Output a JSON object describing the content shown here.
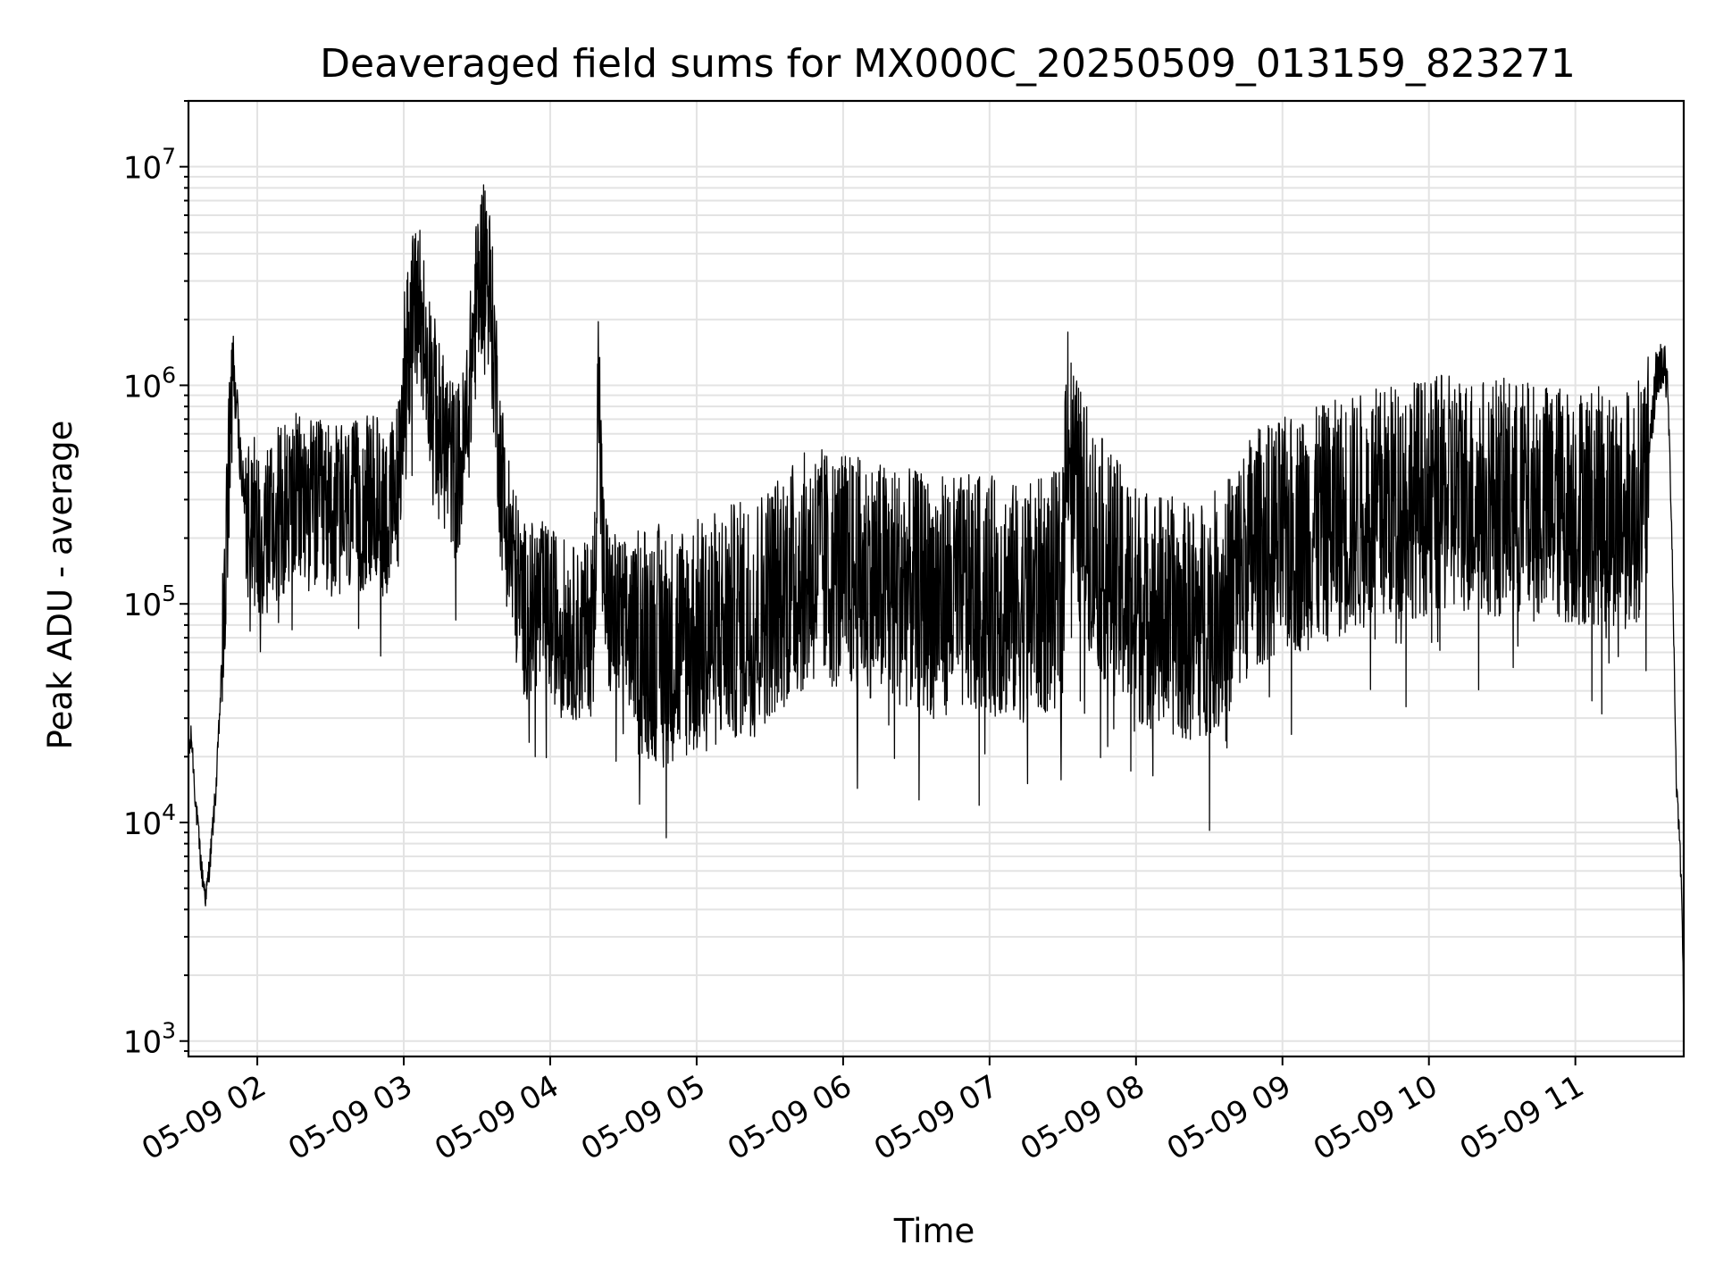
{
  "chart_data": {
    "type": "line",
    "title": "Deaveraged field sums for MX000C_20250509_013159_823271",
    "xlabel": "Time",
    "ylabel": "Peak ADU - average",
    "yscale": "log",
    "ylim": [
      850,
      20000000
    ],
    "xlim_hours": [
      1.53,
      11.74
    ],
    "grid": true,
    "line_color": "#000000",
    "x_ticks": [
      {
        "hour": 2,
        "label": "05-09 02"
      },
      {
        "hour": 3,
        "label": "05-09 03"
      },
      {
        "hour": 4,
        "label": "05-09 04"
      },
      {
        "hour": 5,
        "label": "05-09 05"
      },
      {
        "hour": 6,
        "label": "05-09 06"
      },
      {
        "hour": 7,
        "label": "05-09 07"
      },
      {
        "hour": 8,
        "label": "05-09 08"
      },
      {
        "hour": 9,
        "label": "05-09 09"
      },
      {
        "hour": 10,
        "label": "05-09 10"
      },
      {
        "hour": 11,
        "label": "05-09 11"
      }
    ],
    "y_ticks": [
      {
        "value": 1000,
        "base": "10",
        "exp": "3"
      },
      {
        "value": 10000,
        "base": "10",
        "exp": "4"
      },
      {
        "value": 100000,
        "base": "10",
        "exp": "5"
      },
      {
        "value": 1000000,
        "base": "10",
        "exp": "6"
      },
      {
        "value": 10000000,
        "base": "10",
        "exp": "7"
      }
    ],
    "series": [
      {
        "x": [
          1.53,
          1.55,
          1.58,
          1.62,
          1.65,
          1.68,
          1.72,
          1.75,
          1.78,
          1.8,
          1.82,
          1.84,
          1.86,
          1.88,
          1.9,
          1.93,
          1.96,
          2.0,
          2.1,
          2.25,
          2.4,
          2.6,
          2.8,
          2.9,
          2.98,
          3.0,
          3.05,
          3.1,
          3.15,
          3.2,
          3.25,
          3.3,
          3.35,
          3.4,
          3.45,
          3.5,
          3.55,
          3.58,
          3.6,
          3.63,
          3.66,
          3.7,
          3.75,
          3.8,
          3.85,
          3.9,
          4.0,
          4.1,
          4.2,
          4.3,
          4.33,
          4.36,
          4.4,
          4.5,
          4.6,
          4.8,
          5.0,
          5.2,
          5.4,
          5.6,
          5.8,
          6.0,
          6.2,
          6.4,
          6.6,
          6.8,
          7.0,
          7.2,
          7.4,
          7.5,
          7.53,
          7.56,
          7.6,
          7.7,
          7.8,
          8.0,
          8.2,
          8.4,
          8.6,
          8.8,
          9.0,
          9.2,
          9.4,
          9.6,
          9.8,
          10.0,
          10.2,
          10.4,
          10.6,
          10.8,
          11.0,
          11.2,
          11.4,
          11.5,
          11.55,
          11.6,
          11.63,
          11.66,
          11.69,
          11.71,
          11.73,
          11.74
        ],
        "y": [
          20000,
          25000,
          12000,
          6000,
          4500,
          7000,
          15000,
          40000,
          120000,
          300000,
          600000,
          1000000,
          800000,
          500000,
          350000,
          250000,
          300000,
          200000,
          250000,
          300000,
          280000,
          260000,
          300000,
          250000,
          400000,
          1200000,
          1800000,
          2500000,
          1500000,
          900000,
          600000,
          500000,
          400000,
          450000,
          1000000,
          2500000,
          4000000,
          3000000,
          2000000,
          1000000,
          400000,
          250000,
          150000,
          100000,
          90000,
          100000,
          90000,
          80000,
          70000,
          90000,
          1200000,
          150000,
          90000,
          80000,
          70000,
          65000,
          70000,
          80000,
          90000,
          120000,
          150000,
          140000,
          130000,
          120000,
          110000,
          110000,
          110000,
          100000,
          110000,
          120000,
          900000,
          400000,
          300000,
          200000,
          150000,
          100000,
          90000,
          80000,
          100000,
          180000,
          200000,
          220000,
          250000,
          270000,
          300000,
          310000,
          320000,
          310000,
          300000,
          290000,
          280000,
          280000,
          270000,
          400000,
          1100000,
          1300000,
          1000000,
          200000,
          15000,
          9000,
          4000,
          1200
        ]
      }
    ]
  }
}
